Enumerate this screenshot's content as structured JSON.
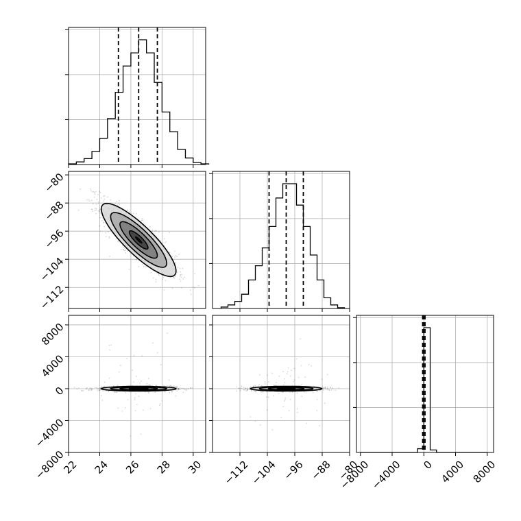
{
  "chart_data": [
    {
      "id": "a",
      "type": "histogram",
      "x": [
        22.0,
        22.5,
        23.0,
        23.5,
        24.0,
        24.5,
        25.0,
        25.5,
        26.0,
        26.5,
        27.0,
        27.5,
        28.0,
        28.5,
        29.0,
        29.5,
        30.0,
        30.5
      ],
      "counts": [
        1,
        4,
        9,
        20,
        40,
        70,
        110,
        150,
        170,
        190,
        170,
        125,
        80,
        50,
        23,
        10,
        3,
        1
      ],
      "quantiles": [
        25.2,
        26.5,
        27.7
      ],
      "xlim": [
        22,
        30.8
      ],
      "grid": true,
      "x_ticks": [
        22,
        24,
        26,
        28,
        30
      ]
    },
    {
      "id": "b",
      "type": "histogram",
      "x": [
        -117.5,
        -115.5,
        -113.5,
        -111.5,
        -109.5,
        -107.5,
        -105.5,
        -103.5,
        -101.5,
        -99.5,
        -97.5,
        -95.5,
        -93.5,
        -91.5,
        -89.5,
        -87.5,
        -85.5,
        -83.5
      ],
      "counts": [
        2,
        5,
        10,
        20,
        40,
        60,
        85,
        115,
        155,
        175,
        175,
        145,
        115,
        75,
        40,
        15,
        5,
        1
      ],
      "quantiles": [
        -103.5,
        -98.5,
        -93.5
      ],
      "xlim": [
        -120,
        -80
      ],
      "grid": true,
      "x_ticks": [
        -112,
        -104,
        -96,
        -88,
        -80
      ],
      "x_ticklabels": [
        "−112",
        "−104",
        "−96",
        "−88",
        "−80"
      ]
    },
    {
      "id": "c",
      "type": "histogram",
      "x": [
        -8000,
        -7200,
        -6400,
        -5600,
        -4800,
        -4000,
        -3200,
        -2400,
        -1600,
        -800,
        0,
        800,
        1600,
        2400,
        3200,
        4000,
        4800,
        5600,
        6400,
        7200
      ],
      "counts": [
        0,
        0,
        0,
        0,
        0,
        0,
        0,
        0,
        0,
        30,
        1000,
        20,
        0,
        0,
        0,
        0,
        0,
        0,
        0,
        0
      ],
      "quantiles": [
        -150,
        0,
        150
      ],
      "xlim": [
        -8500,
        8800
      ],
      "grid": true,
      "x_ticks": [
        -8000,
        -4000,
        0,
        4000,
        8000
      ],
      "x_ticklabels": [
        "−8000",
        "−4000",
        "0",
        "4000",
        "8000"
      ]
    },
    {
      "id": "ab",
      "type": "scatter-density",
      "xlim": [
        22,
        30.8
      ],
      "ylim": [
        -118,
        -79
      ],
      "center": [
        26.5,
        -98.5
      ],
      "sigma": [
        1.2,
        5.2
      ],
      "rho": -0.85,
      "grid": true,
      "y_ticks": [
        -80,
        -88,
        -96,
        -104,
        -112
      ],
      "y_ticklabels": [
        "−80",
        "−88",
        "−96",
        "−104",
        "−112"
      ]
    },
    {
      "id": "ac",
      "type": "scatter-density",
      "xlim": [
        22,
        30.8
      ],
      "ylim": [
        -8000,
        9200
      ],
      "center": [
        26.5,
        0
      ],
      "sigma": [
        1.2,
        150
      ],
      "rho": 0,
      "grid": true,
      "x_ticks": [
        22,
        24,
        26,
        28,
        30
      ],
      "y_ticks": [
        8000,
        4000,
        0,
        -4000,
        -8000
      ],
      "y_ticklabels": [
        "8000",
        "4000",
        "0",
        "−4000",
        "−8000"
      ]
    },
    {
      "id": "bc",
      "type": "scatter-density",
      "xlim": [
        -120,
        -80
      ],
      "ylim": [
        -8000,
        9200
      ],
      "center": [
        -98.5,
        0
      ],
      "sigma": [
        5.2,
        150
      ],
      "rho": 0,
      "grid": true,
      "x_ticks": [
        -112,
        -104,
        -96,
        -88,
        -80
      ],
      "x_ticklabels": [
        "−112",
        "−104",
        "−96",
        "−88",
        "−80"
      ]
    }
  ]
}
